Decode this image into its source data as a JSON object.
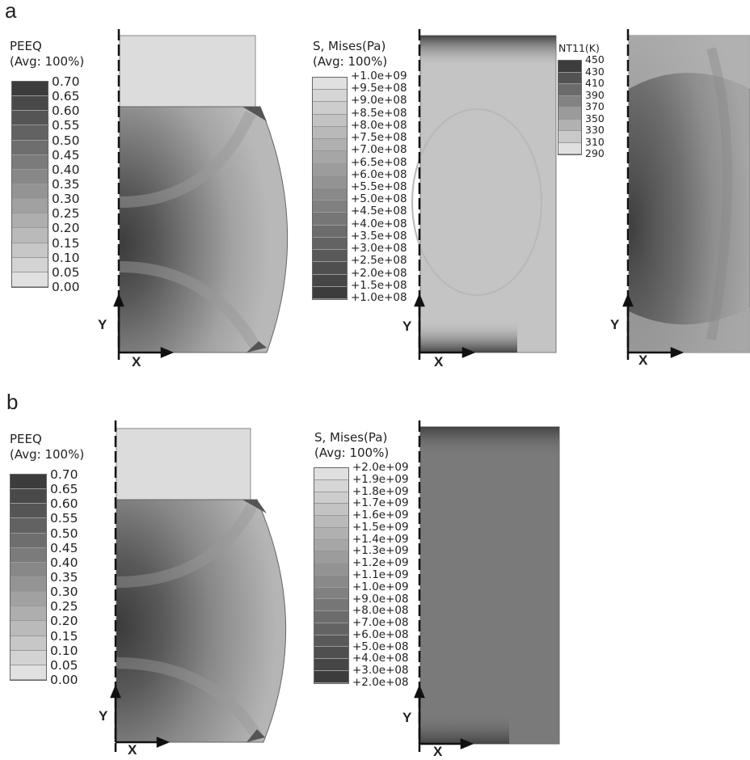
{
  "panels": [
    {
      "letter": "a"
    },
    {
      "letter": "b"
    }
  ],
  "legends": {
    "a_peeq": {
      "title_line1": "PEEQ",
      "title_line2": "(Avg: 100%)",
      "labels": [
        "0.70",
        "0.65",
        "0.60",
        "0.55",
        "0.50",
        "0.45",
        "0.40",
        "0.35",
        "0.30",
        "0.25",
        "0.20",
        "0.15",
        "0.10",
        "0.05",
        "0.00"
      ]
    },
    "a_mises": {
      "title_line1": "S, Mises(Pa)",
      "title_line2": "(Avg: 100%)",
      "labels": [
        "+1.0e+09",
        "+9.5e+08",
        "+9.0e+08",
        "+8.5e+08",
        "+8.0e+08",
        "+7.5e+08",
        "+7.0e+08",
        "+6.5e+08",
        "+6.0e+08",
        "+5.5e+08",
        "+5.0e+08",
        "+4.5e+08",
        "+4.0e+08",
        "+3.5e+08",
        "+3.0e+08",
        "+2.5e+08",
        "+2.0e+08",
        "+1.5e+08",
        "+1.0e+08"
      ]
    },
    "a_nt11": {
      "title_line1": "NT11(K)",
      "labels": [
        "450",
        "430",
        "410",
        "390",
        "370",
        "350",
        "330",
        "310",
        "290"
      ]
    },
    "b_peeq": {
      "title_line1": "PEEQ",
      "title_line2": "(Avg: 100%)",
      "labels": [
        "0.70",
        "0.65",
        "0.60",
        "0.55",
        "0.50",
        "0.45",
        "0.40",
        "0.35",
        "0.30",
        "0.25",
        "0.20",
        "0.15",
        "0.10",
        "0.05",
        "0.00"
      ]
    },
    "b_mises": {
      "title_line1": "S, Mises(Pa)",
      "title_line2": "(Avg: 100%)",
      "labels": [
        "+2.0e+09",
        "+1.9e+09",
        "+1.8e+09",
        "+1.7e+09",
        "+1.6e+09",
        "+1.5e+09",
        "+1.4e+09",
        "+1.3e+09",
        "+1.2e+09",
        "+1.1e+09",
        "+1.0e+09",
        "+9.0e+08",
        "+8.0e+08",
        "+7.0e+08",
        "+6.0e+08",
        "+5.0e+08",
        "+4.0e+08",
        "+3.0e+08",
        "+2.0e+08"
      ]
    }
  },
  "axes": {
    "y_label": "Y",
    "x_label": "X"
  }
}
